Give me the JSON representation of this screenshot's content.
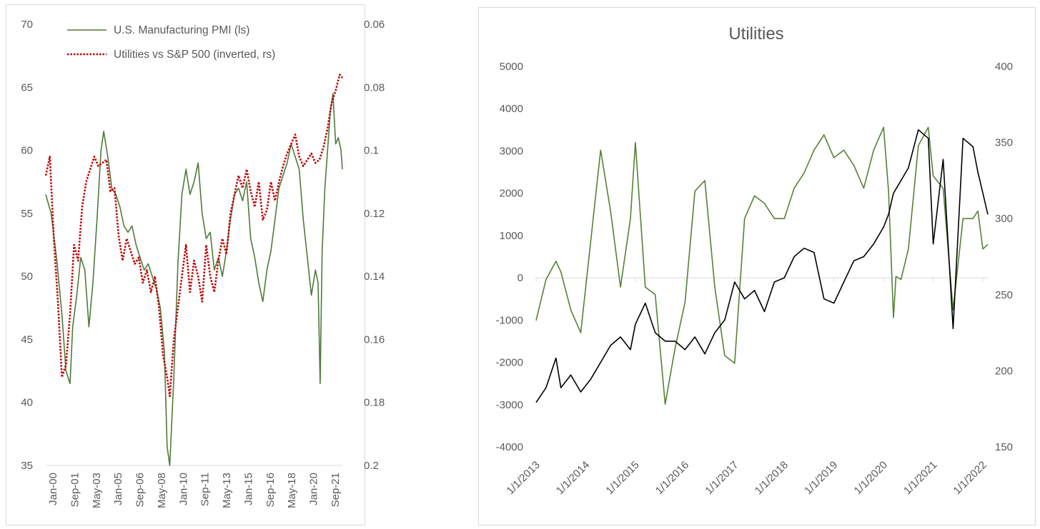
{
  "chart_data": [
    {
      "type": "line",
      "legend": {
        "placement": "top-left",
        "entries": [
          "U.S. Manufacturing PMI (ls)",
          "Utilities vs S&P 500 (inverted, rs)"
        ]
      },
      "categories": [
        "Jan-00",
        "Sep-01",
        "May-03",
        "Jan-05",
        "Sep-06",
        "May-08",
        "Jan-10",
        "Sep-11",
        "May-13",
        "Jan-15",
        "Sep-16",
        "May-18",
        "Jan-20",
        "Sep-21"
      ],
      "x_range": [
        2000.0,
        2022.0
      ],
      "y_left": {
        "ticks": [
          "70",
          "65",
          "60",
          "55",
          "50",
          "45",
          "40",
          "35"
        ],
        "ylim": [
          35,
          70
        ]
      },
      "y_right": {
        "ticks": [
          "0.06",
          "0.08",
          "0.1",
          "0.12",
          "0.14",
          "0.16",
          "0.18",
          "0.2"
        ],
        "ylim": [
          0.06,
          0.2
        ],
        "inverted": true
      },
      "series": [
        {
          "name": "U.S. Manufacturing PMI (ls)",
          "axis": "left",
          "color": "#4e7a3a",
          "x": [
            2000.0,
            2000.4,
            2000.8,
            2001.2,
            2001.5,
            2001.8,
            2002.0,
            2002.3,
            2002.6,
            2002.9,
            2003.2,
            2003.5,
            2003.8,
            2004.1,
            2004.3,
            2004.6,
            2004.9,
            2005.2,
            2005.5,
            2005.8,
            2006.1,
            2006.4,
            2006.7,
            2007.0,
            2007.3,
            2007.6,
            2007.9,
            2008.2,
            2008.5,
            2008.8,
            2009.0,
            2009.2,
            2009.5,
            2009.8,
            2010.1,
            2010.4,
            2010.7,
            2011.0,
            2011.3,
            2011.6,
            2011.9,
            2012.2,
            2012.5,
            2012.8,
            2013.1,
            2013.4,
            2013.7,
            2014.0,
            2014.3,
            2014.6,
            2014.9,
            2015.2,
            2015.5,
            2015.8,
            2016.1,
            2016.4,
            2016.7,
            2017.0,
            2017.3,
            2017.6,
            2017.9,
            2018.2,
            2018.5,
            2018.8,
            2019.1,
            2019.4,
            2019.7,
            2020.0,
            2020.2,
            2020.35,
            2020.5,
            2020.7,
            2020.9,
            2021.1,
            2021.3,
            2021.5,
            2021.7,
            2021.9,
            2022.0
          ],
          "values": [
            56.5,
            55.0,
            51.5,
            47.0,
            42.5,
            41.5,
            46.0,
            48.5,
            51.5,
            50.5,
            46.0,
            49.5,
            54.5,
            60.0,
            61.5,
            59.5,
            57.0,
            56.5,
            55.5,
            54.0,
            53.5,
            54.0,
            52.5,
            51.5,
            50.5,
            51.0,
            50.0,
            49.0,
            47.5,
            44.0,
            36.5,
            35.0,
            42.0,
            51.0,
            56.5,
            58.5,
            56.5,
            57.5,
            59.0,
            55.0,
            53.0,
            53.5,
            50.5,
            51.5,
            50.0,
            52.0,
            54.5,
            56.5,
            57.0,
            56.0,
            57.5,
            53.0,
            51.5,
            49.5,
            48.0,
            50.5,
            52.0,
            54.5,
            57.0,
            58.0,
            59.0,
            60.5,
            59.5,
            58.5,
            54.5,
            51.5,
            48.5,
            50.5,
            49.5,
            41.5,
            52.0,
            57.0,
            60.0,
            63.0,
            64.5,
            60.5,
            61.0,
            60.0,
            58.5
          ]
        },
        {
          "name": "Utilities vs S&P 500 (inverted, rs)",
          "axis": "right",
          "color": "#c00000",
          "x": [
            2000.0,
            2000.3,
            2000.6,
            2000.9,
            2001.2,
            2001.5,
            2001.8,
            2002.1,
            2002.4,
            2002.7,
            2003.0,
            2003.3,
            2003.6,
            2003.9,
            2004.2,
            2004.5,
            2004.8,
            2005.1,
            2005.4,
            2005.7,
            2006.0,
            2006.3,
            2006.6,
            2006.9,
            2007.2,
            2007.5,
            2007.8,
            2008.1,
            2008.4,
            2008.7,
            2009.0,
            2009.2,
            2009.5,
            2009.8,
            2010.1,
            2010.4,
            2010.7,
            2011.0,
            2011.3,
            2011.6,
            2011.9,
            2012.2,
            2012.5,
            2012.8,
            2013.1,
            2013.4,
            2013.7,
            2014.0,
            2014.3,
            2014.6,
            2014.9,
            2015.2,
            2015.5,
            2015.8,
            2016.1,
            2016.4,
            2016.7,
            2017.0,
            2017.3,
            2017.6,
            2017.9,
            2018.2,
            2018.5,
            2018.8,
            2019.1,
            2019.4,
            2019.7,
            2020.0,
            2020.3,
            2020.6,
            2020.9,
            2021.2,
            2021.5,
            2021.8,
            2022.0
          ],
          "values": [
            0.108,
            0.102,
            0.128,
            0.148,
            0.172,
            0.168,
            0.152,
            0.13,
            0.135,
            0.118,
            0.11,
            0.106,
            0.102,
            0.105,
            0.104,
            0.103,
            0.113,
            0.112,
            0.127,
            0.135,
            0.128,
            0.132,
            0.136,
            0.134,
            0.142,
            0.138,
            0.145,
            0.14,
            0.15,
            0.165,
            0.172,
            0.178,
            0.16,
            0.15,
            0.14,
            0.13,
            0.145,
            0.135,
            0.14,
            0.148,
            0.13,
            0.14,
            0.145,
            0.135,
            0.128,
            0.133,
            0.12,
            0.114,
            0.108,
            0.112,
            0.106,
            0.113,
            0.118,
            0.11,
            0.122,
            0.119,
            0.11,
            0.116,
            0.11,
            0.105,
            0.101,
            0.098,
            0.095,
            0.102,
            0.105,
            0.103,
            0.101,
            0.104,
            0.103,
            0.099,
            0.093,
            0.085,
            0.081,
            0.076,
            0.077
          ]
        }
      ]
    },
    {
      "type": "line",
      "title": "Utilities",
      "categories": [
        "1/1/2013",
        "1/1/2014",
        "1/1/2015",
        "1/1/2016",
        "1/1/2017",
        "1/1/2018",
        "1/1/2019",
        "1/1/2020",
        "1/1/2021",
        "1/1/2022"
      ],
      "x_range": [
        2013.0,
        2022.1
      ],
      "y_left": {
        "ticks": [
          "5000",
          "4000",
          "3000",
          "2000",
          "1000",
          "0",
          "-1000",
          "-2000",
          "-3000",
          "-4000"
        ],
        "ylim": [
          -4000,
          5000
        ]
      },
      "y_right": {
        "ticks": [
          "400",
          "350",
          "300",
          "250",
          "200",
          "150"
        ],
        "ylim": [
          150,
          400
        ]
      },
      "series": [
        {
          "name": "series-black-left",
          "axis": "left",
          "color": "#000000",
          "x": [
            2013.0,
            2013.2,
            2013.4,
            2013.5,
            2013.7,
            2013.9,
            2014.1,
            2014.3,
            2014.5,
            2014.7,
            2014.9,
            2015.0,
            2015.2,
            2015.4,
            2015.6,
            2015.8,
            2016.0,
            2016.2,
            2016.4,
            2016.6,
            2016.8,
            2017.0,
            2017.2,
            2017.4,
            2017.6,
            2017.8,
            2018.0,
            2018.2,
            2018.4,
            2018.6,
            2018.8,
            2019.0,
            2019.2,
            2019.4,
            2019.6,
            2019.8,
            2020.0,
            2020.1,
            2020.2,
            2020.25,
            2020.35,
            2020.5,
            2020.7,
            2020.9,
            2021.0,
            2021.2,
            2021.4,
            2021.6,
            2021.8,
            2021.9,
            2022.0,
            2022.1
          ],
          "values": [
            -2950,
            -2600,
            -1900,
            -2600,
            -2300,
            -2700,
            -2400,
            -2000,
            -1600,
            -1400,
            -1700,
            -1100,
            -600,
            -1300,
            -1500,
            -1500,
            -1700,
            -1400,
            -1800,
            -1300,
            -1000,
            -100,
            -500,
            -300,
            -800,
            -100,
            0,
            500,
            700,
            600,
            -500,
            -600,
            -100,
            400,
            500,
            800,
            1200,
            1500,
            2000,
            2100,
            2300,
            2600,
            3500,
            3300,
            800,
            2800,
            -1200,
            3300,
            3100,
            2500,
            2000,
            1500
          ]
        },
        {
          "name": "series-green-right",
          "axis": "right",
          "color": "#548235",
          "x": [
            2013.0,
            2013.2,
            2013.4,
            2013.5,
            2013.7,
            2013.9,
            2014.1,
            2014.3,
            2014.5,
            2014.7,
            2014.9,
            2015.0,
            2015.2,
            2015.4,
            2015.6,
            2015.8,
            2016.0,
            2016.2,
            2016.4,
            2016.6,
            2016.8,
            2017.0,
            2017.2,
            2017.4,
            2017.6,
            2017.8,
            2018.0,
            2018.2,
            2018.4,
            2018.6,
            2018.8,
            2019.0,
            2019.2,
            2019.4,
            2019.6,
            2019.8,
            2020.0,
            2020.1,
            2020.2,
            2020.25,
            2020.35,
            2020.5,
            2020.7,
            2020.9,
            2021.0,
            2021.2,
            2021.4,
            2021.6,
            2021.8,
            2021.9,
            2022.0,
            2022.1
          ],
          "values": [
            233,
            260,
            272,
            265,
            240,
            225,
            285,
            345,
            305,
            255,
            300,
            350,
            255,
            250,
            178,
            215,
            245,
            318,
            325,
            255,
            210,
            205,
            300,
            315,
            310,
            300,
            300,
            320,
            330,
            345,
            355,
            340,
            345,
            335,
            320,
            345,
            360,
            318,
            235,
            262,
            260,
            280,
            348,
            360,
            328,
            320,
            240,
            300,
            300,
            305,
            280,
            283
          ]
        }
      ]
    }
  ]
}
